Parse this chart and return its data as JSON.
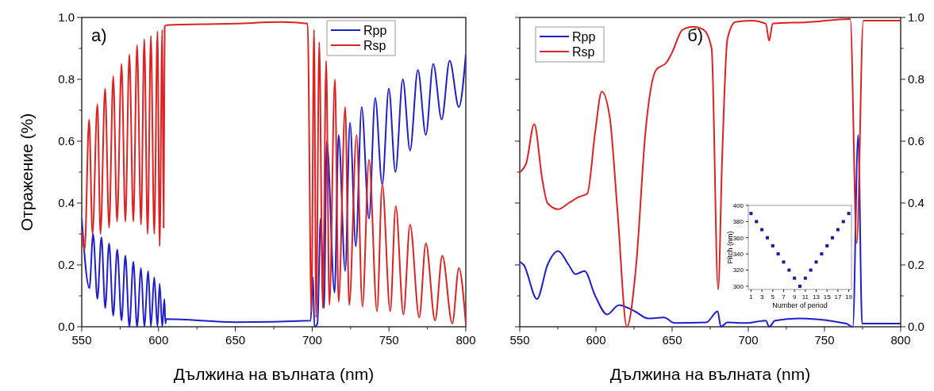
{
  "chart_data": [
    {
      "type": "line",
      "xlabel": "Дължина на вълната (nm)",
      "ylabel": "Отражение (%)",
      "annotations": [
        "a)"
      ],
      "legend": "top right",
      "grid": false,
      "line_style": "solid",
      "xlim": [
        550,
        800
      ],
      "xticks": [
        550,
        {
          "value": 575,
          "label": null
        },
        600,
        {
          "value": 625,
          "label": null
        },
        650,
        {
          "value": 675,
          "label": null
        },
        700,
        {
          "value": 725,
          "label": null
        },
        750,
        {
          "value": 775,
          "label": null
        },
        800
      ],
      "ylim": [
        0,
        1
      ],
      "yticks": [
        {
          "value": 0,
          "label": "0.0"
        },
        {
          "value": 0.1,
          "label": null
        },
        {
          "value": 0.2,
          "label": "0.2"
        },
        {
          "value": 0.3,
          "label": null
        },
        {
          "value": 0.4,
          "label": "0.4"
        },
        {
          "value": 0.5,
          "label": null
        },
        {
          "value": 0.6,
          "label": "0.6"
        },
        {
          "value": 0.7,
          "label": null
        },
        {
          "value": 0.8,
          "label": "0.8"
        },
        {
          "value": 0.9,
          "label": null
        },
        {
          "value": 1,
          "label": "1.0"
        }
      ],
      "series": [
        {
          "name": "Rpp",
          "color": "#1f1fcc",
          "x": [
            550,
            555,
            557.4,
            560.2,
            562.8,
            565.3,
            567.8,
            570.5,
            573.1,
            575.9,
            578.4,
            581,
            583.6,
            586,
            588.6,
            590.7,
            593.3,
            595,
            597.2,
            599.3,
            600.7,
            602.4,
            603.8,
            604.5,
            605,
            650,
            699,
            700.5,
            701.5,
            703.4,
            705.5,
            707.7,
            709.5,
            714.6,
            717.2,
            721.5,
            724.6,
            728.4,
            732.2,
            737,
            741,
            745.6,
            749.9,
            754.2,
            759,
            763.7,
            768.8,
            774,
            778.8,
            784.3,
            789.5,
            795.5,
            800
          ],
          "values": [
            0.35,
            0.125,
            0.3,
            0.09,
            0.29,
            0.06,
            0.27,
            0.035,
            0.25,
            0.02,
            0.23,
            0,
            0.21,
            0,
            0.19,
            0,
            0.18,
            0,
            0.16,
            0,
            0.14,
            0,
            0.09,
            0.01,
            0.025,
            0.015,
            0.02,
            0.16,
            0,
            0.01,
            0.35,
            0.06,
            0.6,
            0.11,
            0.62,
            0.18,
            0.66,
            0.26,
            0.71,
            0.35,
            0.74,
            0.46,
            0.77,
            0.5,
            0.8,
            0.57,
            0.83,
            0.62,
            0.85,
            0.67,
            0.86,
            0.71,
            0.88
          ]
        },
        {
          "name": "Rsp",
          "color": "#dd2222",
          "x": [
            550,
            551.9,
            554.8,
            557,
            560.2,
            562.2,
            565.2,
            567.8,
            570.5,
            573,
            575.9,
            578.4,
            581,
            583.6,
            586,
            588.6,
            590.7,
            592.9,
            595,
            597.2,
            599.3,
            600.7,
            602.4,
            603.3,
            604,
            605,
            650,
            680,
            697,
            699.5,
            701.2,
            702.6,
            704.6,
            706.9,
            709.1,
            711.2,
            714.8,
            717.2,
            721.5,
            724.1,
            728.9,
            732.7,
            737,
            742.2,
            745.6,
            750.8,
            754.4,
            759.4,
            763.7,
            769.7,
            774,
            780,
            784.7,
            791.2,
            795.5,
            800
          ],
          "values": [
            0.31,
            0.25,
            0.67,
            0.3,
            0.72,
            0.3,
            0.77,
            0.32,
            0.81,
            0.34,
            0.85,
            0.34,
            0.88,
            0.34,
            0.91,
            0.33,
            0.93,
            0.3,
            0.94,
            0.3,
            0.955,
            0.26,
            0.96,
            0.32,
            0.97,
            0.975,
            0.98,
            0.985,
            0.98,
            0.05,
            0.96,
            0.03,
            0.92,
            0.06,
            0.86,
            0.07,
            0.8,
            0.08,
            0.71,
            0.07,
            0.62,
            0.065,
            0.54,
            0.05,
            0.46,
            0.05,
            0.39,
            0.04,
            0.33,
            0.03,
            0.27,
            0.02,
            0.23,
            0.01,
            0.19,
            0.01
          ]
        }
      ]
    },
    {
      "type": "line",
      "xlabel": "Дължина на вълната (nm)",
      "annotations": [
        "б)"
      ],
      "legend": "top left",
      "grid": false,
      "line_style": "solid",
      "xlim": [
        550,
        800
      ],
      "xticks": [
        550,
        {
          "value": 575,
          "label": null
        },
        600,
        {
          "value": 625,
          "label": null
        },
        650,
        {
          "value": 675,
          "label": null
        },
        700,
        {
          "value": 725,
          "label": null
        },
        750,
        {
          "value": 775,
          "label": null
        },
        800
      ],
      "y2lim": [
        0,
        1
      ],
      "y2ticks": [
        {
          "value": 0,
          "label": "0.0"
        },
        {
          "value": 0.1,
          "label": null
        },
        {
          "value": 0.2,
          "label": "0.2"
        },
        {
          "value": 0.3,
          "label": null
        },
        {
          "value": 0.4,
          "label": "0.4"
        },
        {
          "value": 0.5,
          "label": null
        },
        {
          "value": 0.6,
          "label": "0.6"
        },
        {
          "value": 0.7,
          "label": null
        },
        {
          "value": 0.8,
          "label": "0.8"
        },
        {
          "value": 0.9,
          "label": null
        },
        {
          "value": 1,
          "label": "1.0"
        }
      ],
      "series": [
        {
          "name": "Rpp",
          "color": "#1f1fcc",
          "axis": "y2",
          "x": [
            550,
            552.6,
            561.3,
            568.2,
            575.2,
            582.1,
            586.5,
            592.5,
            599.5,
            607.3,
            615.1,
            625.5,
            634.2,
            644.6,
            651.6,
            672.4,
            679.9,
            682,
            686.3,
            698.4,
            711.5,
            713.7,
            717.5,
            733.1,
            764.3,
            768.6,
            772.1,
            774.7,
            800
          ],
          "values": [
            0.21,
            0.2,
            0.09,
            0.2,
            0.245,
            0.2,
            0.17,
            0.18,
            0.1,
            0.04,
            0.07,
            0.05,
            0.027,
            0.03,
            0.012,
            0.014,
            0.05,
            0,
            0.014,
            0.012,
            0.02,
            0,
            0.02,
            0.027,
            0.01,
            0,
            0.62,
            0.01,
            0.01
          ]
        },
        {
          "name": "Rsp",
          "color": "#dd2222",
          "axis": "y2",
          "x": [
            550,
            554.3,
            559.5,
            564.8,
            568.2,
            575.2,
            582.1,
            589,
            594.3,
            599.5,
            603.8,
            609,
            614.2,
            620.3,
            626.4,
            632.5,
            639.4,
            646.4,
            649.8,
            656.8,
            663.7,
            670.7,
            675.9,
            680.2,
            682.8,
            686.3,
            691.5,
            701.9,
            711.5,
            713.7,
            716,
            740,
            766.9,
            771.2,
            775.5,
            800
          ],
          "values": [
            0.5,
            0.53,
            0.655,
            0.475,
            0.4,
            0.38,
            0.4,
            0.42,
            0.43,
            0.63,
            0.76,
            0.68,
            0.37,
            0,
            0.2,
            0.63,
            0.83,
            0.855,
            0.885,
            0.96,
            0.97,
            0.96,
            0.9,
            0.12,
            0.54,
            0.93,
            0.985,
            0.99,
            0.98,
            0.925,
            0.98,
            0.985,
            0.995,
            0.27,
            0.99,
            0.99
          ]
        }
      ]
    },
    {
      "type": "scatter",
      "xlabel": "Number of period",
      "ylabel": "Pitch (nm)",
      "marker": "square",
      "grid": false,
      "xlim": [
        0.5,
        19.5
      ],
      "xticks": [
        1,
        3,
        5,
        7,
        9,
        11,
        13,
        15,
        17,
        19
      ],
      "ylim": [
        296,
        400
      ],
      "yticks": [
        300,
        320,
        340,
        360,
        380,
        400
      ],
      "series": [
        {
          "color": "#1a1aa0",
          "x": [
            1,
            2,
            3,
            4,
            5,
            6,
            7,
            8,
            9,
            10,
            11,
            12,
            13,
            14,
            15,
            16,
            17,
            18,
            19
          ],
          "values": [
            390,
            380,
            370,
            360,
            350,
            340,
            330,
            320,
            310,
            300,
            310,
            320,
            330,
            340,
            350,
            360,
            370,
            380,
            390
          ]
        }
      ]
    }
  ]
}
